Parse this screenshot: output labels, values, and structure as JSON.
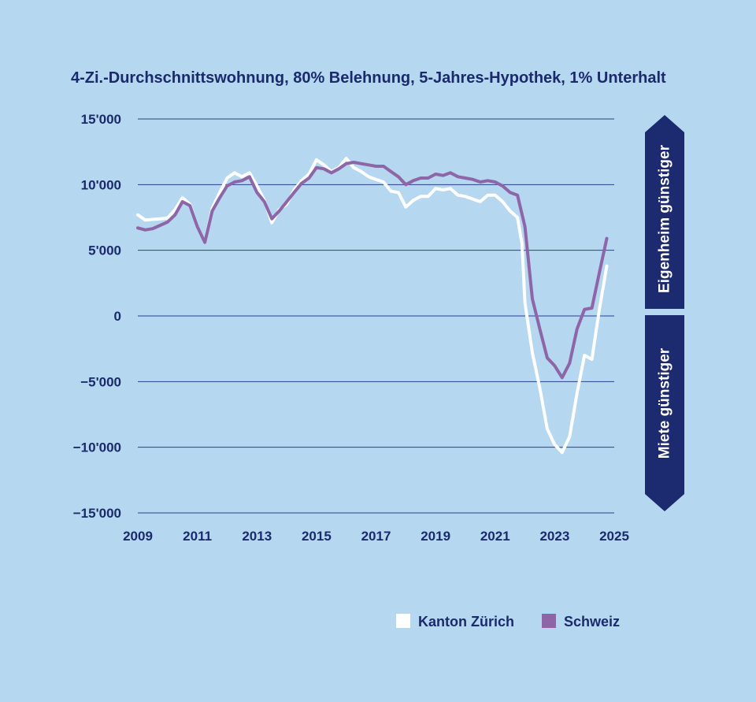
{
  "chart_data": {
    "type": "line",
    "title": "4-Zi.-Durchschnittswohnung, 80% Belehnung, 5-Jahres-Hypothek, 1% Unterhalt",
    "xlabel": "",
    "ylabel": "",
    "xlim": [
      2009,
      2025
    ],
    "ylim": [
      -15000,
      15000
    ],
    "x_ticks": [
      2009,
      2011,
      2013,
      2015,
      2017,
      2019,
      2021,
      2023,
      2025
    ],
    "x_tick_labels": [
      "2009",
      "2011",
      "2013",
      "2015",
      "2017",
      "2019",
      "2021",
      "2023",
      "2025"
    ],
    "y_ticks": [
      15000,
      10000,
      5000,
      0,
      -5000,
      -10000,
      -15000
    ],
    "y_tick_labels": [
      "15'000",
      "10'000",
      "5'000",
      "0",
      "−5'000",
      "−10'000",
      "−15'000"
    ],
    "grid": "horizontal",
    "legend_position": "bottom-right",
    "annotations": {
      "upper_arrow": "Eigenheim günstiger",
      "lower_arrow": "Miete günstiger"
    },
    "colors": {
      "background": "#b5d7f0",
      "text": "#1a2a6c",
      "grid": "#2d3f8a",
      "arrow": "#1c2a70",
      "zurich": "#ffffff",
      "schweiz": "#8e66a8"
    },
    "series": [
      {
        "name": "Kanton Zürich",
        "color": "#ffffff",
        "points": [
          [
            2009.0,
            7700
          ],
          [
            2009.25,
            7300
          ],
          [
            2009.5,
            7350
          ],
          [
            2009.75,
            7400
          ],
          [
            2010.0,
            7450
          ],
          [
            2010.25,
            8100
          ],
          [
            2010.5,
            9000
          ],
          [
            2010.75,
            8500
          ],
          [
            2011.0,
            6800
          ],
          [
            2011.25,
            5600
          ],
          [
            2011.5,
            8200
          ],
          [
            2011.75,
            9400
          ],
          [
            2012.0,
            10500
          ],
          [
            2012.25,
            10900
          ],
          [
            2012.5,
            10600
          ],
          [
            2012.75,
            10900
          ],
          [
            2013.0,
            9900
          ],
          [
            2013.25,
            8800
          ],
          [
            2013.5,
            7100
          ],
          [
            2013.75,
            8100
          ],
          [
            2014.0,
            8500
          ],
          [
            2014.25,
            9600
          ],
          [
            2014.5,
            10300
          ],
          [
            2014.75,
            10800
          ],
          [
            2015.0,
            11900
          ],
          [
            2015.25,
            11500
          ],
          [
            2015.5,
            11000
          ],
          [
            2015.75,
            11300
          ],
          [
            2016.0,
            12000
          ],
          [
            2016.25,
            11300
          ],
          [
            2016.5,
            11000
          ],
          [
            2016.75,
            10600
          ],
          [
            2017.0,
            10400
          ],
          [
            2017.25,
            10200
          ],
          [
            2017.5,
            9500
          ],
          [
            2017.75,
            9400
          ],
          [
            2018.0,
            8300
          ],
          [
            2018.25,
            8800
          ],
          [
            2018.5,
            9100
          ],
          [
            2018.75,
            9100
          ],
          [
            2019.0,
            9700
          ],
          [
            2019.25,
            9600
          ],
          [
            2019.5,
            9700
          ],
          [
            2019.75,
            9200
          ],
          [
            2020.0,
            9100
          ],
          [
            2020.25,
            8900
          ],
          [
            2020.5,
            8700
          ],
          [
            2020.75,
            9200
          ],
          [
            2021.0,
            9200
          ],
          [
            2021.25,
            8700
          ],
          [
            2021.5,
            8000
          ],
          [
            2021.75,
            7500
          ],
          [
            2021.9,
            5500
          ],
          [
            2022.0,
            1000
          ],
          [
            2022.25,
            -2800
          ],
          [
            2022.5,
            -5500
          ],
          [
            2022.75,
            -8600
          ],
          [
            2023.0,
            -9800
          ],
          [
            2023.25,
            -10400
          ],
          [
            2023.5,
            -9200
          ],
          [
            2023.75,
            -5900
          ],
          [
            2024.0,
            -3000
          ],
          [
            2024.25,
            -3300
          ],
          [
            2024.5,
            500
          ],
          [
            2024.75,
            3800
          ]
        ]
      },
      {
        "name": "Schweiz",
        "color": "#8e66a8",
        "points": [
          [
            2009.0,
            6700
          ],
          [
            2009.25,
            6550
          ],
          [
            2009.5,
            6650
          ],
          [
            2009.75,
            6900
          ],
          [
            2010.0,
            7150
          ],
          [
            2010.25,
            7700
          ],
          [
            2010.5,
            8700
          ],
          [
            2010.75,
            8400
          ],
          [
            2011.0,
            6800
          ],
          [
            2011.25,
            5600
          ],
          [
            2011.5,
            8000
          ],
          [
            2011.75,
            9000
          ],
          [
            2012.0,
            9900
          ],
          [
            2012.25,
            10200
          ],
          [
            2012.5,
            10300
          ],
          [
            2012.75,
            10600
          ],
          [
            2013.0,
            9400
          ],
          [
            2013.25,
            8700
          ],
          [
            2013.5,
            7400
          ],
          [
            2013.75,
            8000
          ],
          [
            2014.0,
            8700
          ],
          [
            2014.25,
            9400
          ],
          [
            2014.5,
            10100
          ],
          [
            2014.75,
            10500
          ],
          [
            2015.0,
            11300
          ],
          [
            2015.25,
            11200
          ],
          [
            2015.5,
            10900
          ],
          [
            2015.75,
            11200
          ],
          [
            2016.0,
            11600
          ],
          [
            2016.25,
            11700
          ],
          [
            2016.5,
            11600
          ],
          [
            2016.75,
            11500
          ],
          [
            2017.0,
            11400
          ],
          [
            2017.25,
            11400
          ],
          [
            2017.5,
            11000
          ],
          [
            2017.75,
            10600
          ],
          [
            2018.0,
            10000
          ],
          [
            2018.25,
            10300
          ],
          [
            2018.5,
            10500
          ],
          [
            2018.75,
            10500
          ],
          [
            2019.0,
            10800
          ],
          [
            2019.25,
            10700
          ],
          [
            2019.5,
            10900
          ],
          [
            2019.75,
            10600
          ],
          [
            2020.0,
            10500
          ],
          [
            2020.25,
            10400
          ],
          [
            2020.5,
            10200
          ],
          [
            2020.75,
            10300
          ],
          [
            2021.0,
            10200
          ],
          [
            2021.25,
            9900
          ],
          [
            2021.5,
            9400
          ],
          [
            2021.75,
            9200
          ],
          [
            2022.0,
            6800
          ],
          [
            2022.25,
            1300
          ],
          [
            2022.5,
            -1000
          ],
          [
            2022.75,
            -3200
          ],
          [
            2023.0,
            -3800
          ],
          [
            2023.25,
            -4700
          ],
          [
            2023.5,
            -3600
          ],
          [
            2023.75,
            -1000
          ],
          [
            2024.0,
            500
          ],
          [
            2024.25,
            600
          ],
          [
            2024.5,
            3300
          ],
          [
            2024.75,
            5900
          ]
        ]
      }
    ]
  }
}
